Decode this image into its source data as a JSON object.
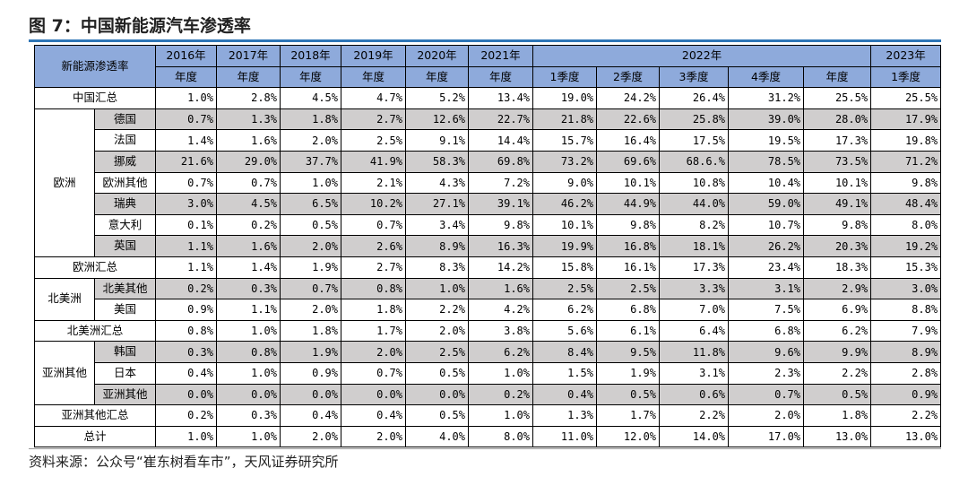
{
  "title": "图 7：中国新能源汽车渗透率",
  "source": "资料来源：公众号“崔东树看车市”，天风证券研究所",
  "chart_data": {
    "type": "table",
    "corner_label": "新能源渗透率",
    "year_headers": [
      "2016年",
      "2017年",
      "2018年",
      "2019年",
      "2020年",
      "2021年",
      "2022年",
      "2023年"
    ],
    "period_headers": [
      "年度",
      "年度",
      "年度",
      "年度",
      "年度",
      "年度",
      "1季度",
      "2季度",
      "3季度",
      "4季度",
      "年度",
      "1季度"
    ],
    "groups": {
      "china_total": "中国汇总",
      "europe": "欧洲",
      "europe_total": "欧洲汇总",
      "north_america": "北美洲",
      "north_america_total": "北美洲汇总",
      "asia_other": "亚洲其他",
      "asia_other_total": "亚洲其他汇总",
      "grand_total": "总计"
    },
    "rows": [
      {
        "label": "中国汇总",
        "values": [
          "1.0%",
          "2.8%",
          "4.5%",
          "4.7%",
          "5.2%",
          "13.4%",
          "19.0%",
          "24.2%",
          "26.4%",
          "31.2%",
          "25.5%",
          "25.5%"
        ]
      },
      {
        "label": "德国",
        "values": [
          "0.7%",
          "1.3%",
          "1.8%",
          "2.7%",
          "12.6%",
          "22.7%",
          "21.8%",
          "22.6%",
          "25.8%",
          "39.0%",
          "28.0%",
          "17.9%"
        ]
      },
      {
        "label": "法国",
        "values": [
          "1.4%",
          "1.6%",
          "2.0%",
          "2.5%",
          "9.1%",
          "14.4%",
          "15.7%",
          "16.4%",
          "17.5%",
          "19.5%",
          "17.3%",
          "19.8%"
        ]
      },
      {
        "label": "挪威",
        "values": [
          "21.6%",
          "29.0%",
          "37.7%",
          "41.9%",
          "58.3%",
          "69.8%",
          "73.2%",
          "69.6%",
          "68.6.%",
          "78.5%",
          "73.5%",
          "71.2%"
        ]
      },
      {
        "label": "欧洲其他",
        "values": [
          "0.7%",
          "0.7%",
          "1.0%",
          "2.1%",
          "4.3%",
          "7.2%",
          "9.0%",
          "10.1%",
          "10.8%",
          "10.4%",
          "10.1%",
          "9.8%"
        ]
      },
      {
        "label": "瑞典",
        "values": [
          "3.0%",
          "4.5%",
          "6.5%",
          "10.2%",
          "27.1%",
          "39.1%",
          "46.2%",
          "44.9%",
          "44.0%",
          "59.0%",
          "49.1%",
          "48.4%"
        ]
      },
      {
        "label": "意大利",
        "values": [
          "0.1%",
          "0.2%",
          "0.5%",
          "0.7%",
          "3.4%",
          "9.8%",
          "10.1%",
          "9.8%",
          "8.2%",
          "10.7%",
          "9.8%",
          "8.0%"
        ]
      },
      {
        "label": "英国",
        "values": [
          "1.1%",
          "1.6%",
          "2.0%",
          "2.6%",
          "8.9%",
          "16.3%",
          "19.9%",
          "16.8%",
          "18.1%",
          "26.2%",
          "20.3%",
          "19.2%"
        ]
      },
      {
        "label": "欧洲汇总",
        "values": [
          "1.1%",
          "1.4%",
          "1.9%",
          "2.7%",
          "8.3%",
          "14.2%",
          "15.8%",
          "16.1%",
          "17.3%",
          "23.4%",
          "18.3%",
          "15.3%"
        ]
      },
      {
        "label": "北美其他",
        "values": [
          "0.2%",
          "0.3%",
          "0.7%",
          "0.8%",
          "1.0%",
          "1.6%",
          "2.5%",
          "2.5%",
          "3.3%",
          "3.1%",
          "2.9%",
          "3.0%"
        ]
      },
      {
        "label": "美国",
        "values": [
          "0.9%",
          "1.1%",
          "2.0%",
          "1.8%",
          "2.2%",
          "4.2%",
          "6.2%",
          "6.8%",
          "7.0%",
          "7.5%",
          "6.9%",
          "8.8%"
        ]
      },
      {
        "label": "北美洲汇总",
        "values": [
          "0.8%",
          "1.0%",
          "1.8%",
          "1.7%",
          "2.0%",
          "3.8%",
          "5.6%",
          "6.1%",
          "6.4%",
          "6.8%",
          "6.2%",
          "7.9%"
        ]
      },
      {
        "label": "韩国",
        "values": [
          "0.3%",
          "0.8%",
          "1.9%",
          "2.0%",
          "2.5%",
          "6.2%",
          "8.4%",
          "9.5%",
          "11.8%",
          "9.6%",
          "9.9%",
          "8.9%"
        ]
      },
      {
        "label": "日本",
        "values": [
          "0.4%",
          "1.0%",
          "0.9%",
          "0.7%",
          "0.5%",
          "1.0%",
          "1.5%",
          "1.9%",
          "3.1%",
          "2.3%",
          "2.2%",
          "2.8%"
        ]
      },
      {
        "label": "亚洲其他",
        "values": [
          "0.0%",
          "0.0%",
          "0.0%",
          "0.0%",
          "0.0%",
          "0.2%",
          "0.4%",
          "0.5%",
          "0.6%",
          "0.7%",
          "0.5%",
          "0.9%"
        ]
      },
      {
        "label": "亚洲其他汇总",
        "values": [
          "0.2%",
          "0.3%",
          "0.4%",
          "0.4%",
          "0.5%",
          "1.0%",
          "1.3%",
          "1.7%",
          "2.2%",
          "2.0%",
          "1.8%",
          "2.2%"
        ]
      },
      {
        "label": "总计",
        "values": [
          "1.0%",
          "1.0%",
          "2.0%",
          "2.0%",
          "4.0%",
          "8.0%",
          "11.0%",
          "12.0%",
          "14.0%",
          "17.0%",
          "13.0%",
          "13.0%"
        ]
      }
    ]
  }
}
